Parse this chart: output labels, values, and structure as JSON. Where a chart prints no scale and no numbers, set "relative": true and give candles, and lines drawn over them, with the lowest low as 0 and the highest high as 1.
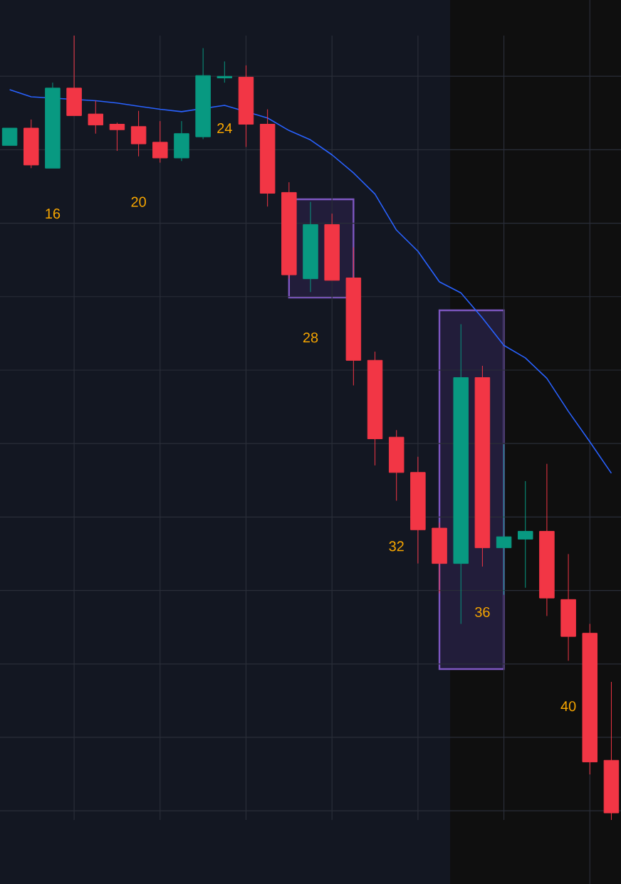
{
  "chart_data": {
    "type": "candlestick",
    "relative": true,
    "grid": true,
    "categories": [
      null,
      null,
      null,
      null,
      null,
      null,
      null,
      null,
      null,
      null,
      null,
      null,
      null,
      null,
      null,
      null,
      null,
      null,
      null,
      null,
      null,
      null,
      null,
      null,
      null,
      null,
      null,
      null,
      null
    ],
    "ohlc": [
      [
        0.86,
        0.882,
        0.86,
        0.882
      ],
      [
        0.882,
        0.893,
        0.831,
        0.835
      ],
      [
        0.831,
        0.94,
        0.831,
        0.933
      ],
      [
        0.933,
        1.0,
        0.898,
        0.898
      ],
      [
        0.9,
        0.917,
        0.875,
        0.886
      ],
      [
        0.887,
        0.889,
        0.853,
        0.88
      ],
      [
        0.884,
        0.904,
        0.846,
        0.862
      ],
      [
        0.864,
        0.891,
        0.838,
        0.844
      ],
      [
        0.844,
        0.891,
        0.84,
        0.875
      ],
      [
        0.871,
        0.984,
        0.868,
        0.949
      ],
      [
        0.946,
        0.967,
        0.94,
        0.948
      ],
      [
        0.947,
        0.962,
        0.858,
        0.887
      ],
      [
        0.887,
        0.906,
        0.782,
        0.799
      ],
      [
        0.8,
        0.813,
        0.69,
        0.695
      ],
      [
        0.69,
        0.788,
        0.673,
        0.759
      ],
      [
        0.759,
        0.773,
        0.688,
        0.688
      ],
      [
        0.691,
        0.73,
        0.554,
        0.586
      ],
      [
        0.586,
        0.597,
        0.452,
        0.486
      ],
      [
        0.488,
        0.497,
        0.407,
        0.443
      ],
      [
        0.443,
        0.463,
        0.327,
        0.37
      ],
      [
        0.372,
        0.379,
        0.289,
        0.327
      ],
      [
        0.327,
        0.632,
        0.25,
        0.564
      ],
      [
        0.564,
        0.579,
        0.323,
        0.347
      ],
      [
        0.347,
        0.479,
        0.287,
        0.361
      ],
      [
        0.358,
        0.432,
        0.296,
        0.368
      ],
      [
        0.368,
        0.454,
        0.26,
        0.283
      ],
      [
        0.281,
        0.339,
        0.203,
        0.234
      ],
      [
        0.238,
        0.25,
        0.058,
        0.074
      ],
      [
        0.076,
        0.176,
        0.0,
        0.009
      ]
    ],
    "series": [
      {
        "type": "line",
        "color": "#2962ff",
        "marker": "none",
        "values": [
          0.931,
          0.922,
          null,
          null,
          0.917,
          0.914,
          0.91,
          0.906,
          0.903,
          null,
          0.911,
          null,
          0.895,
          0.879,
          0.867,
          0.848,
          0.825,
          0.798,
          0.752,
          0.725,
          0.686,
          0.672,
          0.64,
          0.605,
          0.589,
          0.563,
          0.521,
          0.482,
          0.442
        ]
      }
    ],
    "annotations": [
      "16",
      "20",
      "24",
      "28",
      "32",
      "36",
      "40"
    ]
  }
}
